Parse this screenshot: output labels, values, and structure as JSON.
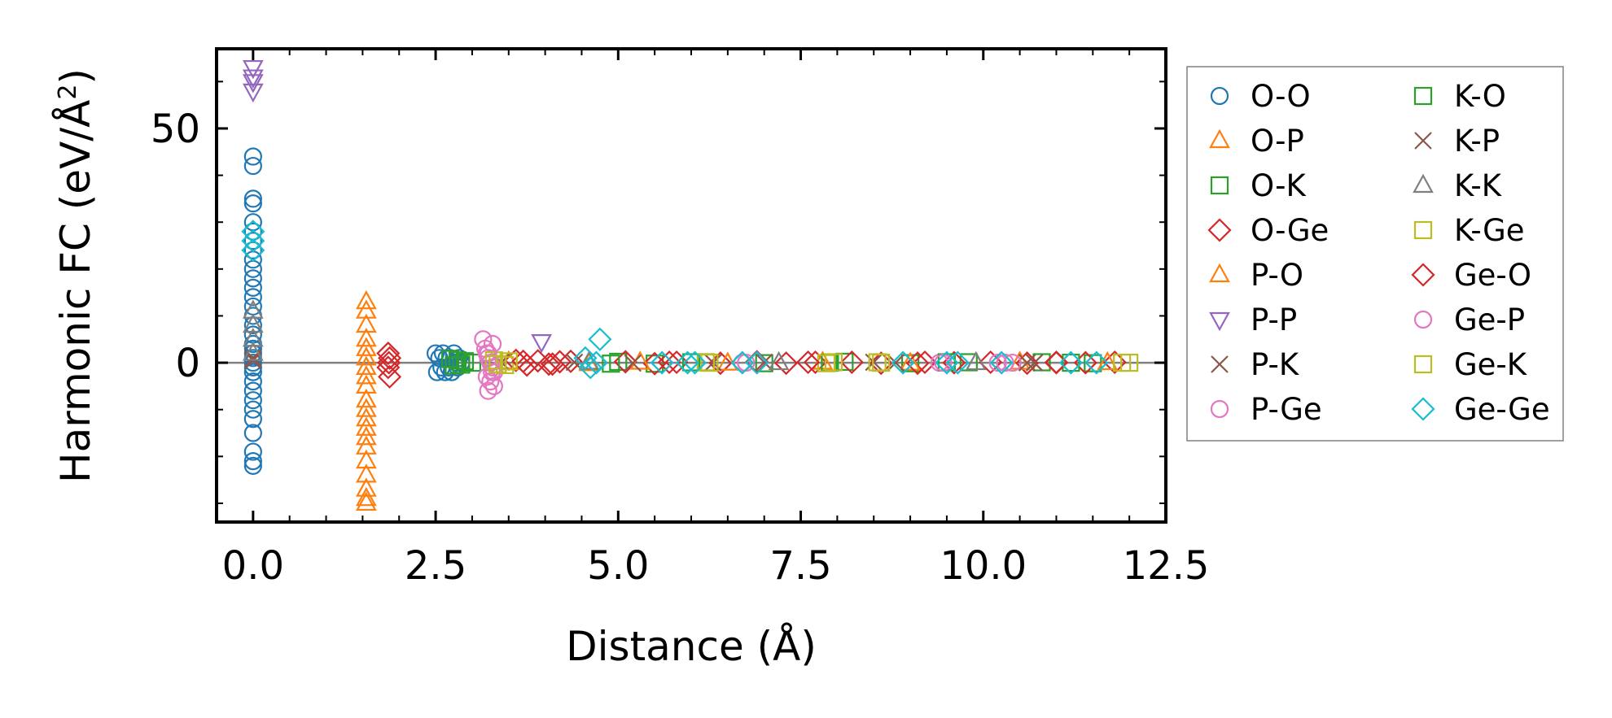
{
  "chart_data": {
    "type": "scatter",
    "title": "",
    "xlabel": "Distance (Å)",
    "ylabel_main": "Harmonic FC (eV/Å",
    "ylabel_sup": "2",
    "ylabel_end": ")",
    "xlim": [
      -0.5,
      12.5
    ],
    "ylim": [
      -34,
      67
    ],
    "xticks": [
      0.0,
      2.5,
      5.0,
      7.5,
      10.0,
      12.5
    ],
    "xtick_labels": [
      "0.0",
      "2.5",
      "5.0",
      "7.5",
      "10.0",
      "12.5"
    ],
    "yticks": [
      0,
      50
    ],
    "ytick_labels": [
      "0",
      "50"
    ],
    "reference_line_y": 0,
    "legend_position": "outside-right",
    "series": [
      {
        "name": "O-O",
        "color": "#1f77b4",
        "marker": "circle",
        "x": [
          0,
          0,
          0,
          0,
          0,
          0,
          0,
          0,
          0,
          0,
          0,
          0,
          0,
          0,
          0,
          0,
          0,
          0,
          0,
          0,
          0,
          0,
          0,
          0,
          0,
          0,
          0,
          0,
          0,
          0,
          0,
          0,
          0,
          2.5,
          2.52,
          2.55,
          2.58,
          2.6,
          2.63,
          2.65,
          2.68,
          2.7,
          2.72,
          2.75,
          2.78,
          2.8,
          2.82,
          2.85
        ],
        "y": [
          44,
          42,
          35,
          34,
          30,
          28,
          26,
          24,
          22,
          20,
          18,
          16,
          14,
          12,
          10,
          8,
          6,
          4,
          2,
          0,
          -2,
          -4,
          -6,
          -8,
          -10,
          -12,
          -15,
          -19,
          -21,
          -22,
          1,
          -1,
          3,
          2,
          -2,
          1,
          -1,
          2,
          -2,
          1,
          -1,
          1,
          -2,
          2,
          0,
          -1,
          1,
          0
        ]
      },
      {
        "name": "O-P",
        "color": "#ff7f0e",
        "marker": "triangle",
        "x": [
          1.55,
          1.55,
          1.55,
          1.55,
          1.55,
          1.55,
          1.55,
          1.55,
          1.55,
          1.55,
          1.55,
          1.55,
          1.55,
          1.55,
          1.55,
          1.55,
          1.55,
          1.55,
          1.55,
          1.55
        ],
        "y": [
          13,
          11,
          8,
          5,
          3,
          1,
          -1,
          -3,
          -5,
          -8,
          -10,
          -12,
          -14,
          -16,
          -18,
          -21,
          -24,
          -27,
          -29,
          -30
        ]
      },
      {
        "name": "O-K",
        "color": "#2ca02c",
        "marker": "square",
        "x": [
          2.7,
          2.75,
          2.8,
          2.85,
          2.9,
          3.0,
          5.0,
          5.5,
          6.2,
          7.0,
          8.1,
          9.0,
          9.8,
          10.8,
          11.5
        ],
        "y": [
          0.8,
          -0.6,
          0.5,
          -0.4,
          0.3,
          0,
          0.2,
          -0.2,
          0.1,
          -0.1,
          0.2,
          -0.1,
          0.1,
          0.1,
          -0.1
        ]
      },
      {
        "name": "O-Ge",
        "color": "#d62728",
        "marker": "diamond",
        "x": [
          1.85,
          1.85,
          1.87,
          1.87,
          1.86,
          3.6,
          3.75,
          3.9,
          4.05,
          4.2,
          4.35,
          5.1,
          5.5,
          5.8,
          6.4,
          6.9,
          7.3,
          7.7,
          8.2,
          8.6,
          9.2,
          9.6,
          10.1,
          10.6,
          11.0,
          11.4,
          11.8
        ],
        "y": [
          2,
          -1,
          1,
          -3,
          0,
          0.5,
          -0.5,
          0.4,
          -0.3,
          0.2,
          0.3,
          0.2,
          -0.2,
          0.1,
          -0.1,
          0.2,
          -0.1,
          0.1,
          0.1,
          -0.1,
          0.1,
          0,
          0.1,
          -0.1,
          0.1,
          0,
          0.1
        ]
      },
      {
        "name": "P-O",
        "color": "#ff7f0e",
        "marker": "triangle",
        "x": [
          3.5,
          4.6,
          5.3,
          6.5,
          7.8,
          9.0,
          10.5,
          11.7
        ],
        "y": [
          0.2,
          -0.2,
          0.1,
          -0.1,
          0.1,
          -0.1,
          0.1,
          0
        ]
      },
      {
        "name": "P-P",
        "color": "#9467bd",
        "marker": "triangle-down",
        "x": [
          0,
          0,
          0,
          0,
          3.95
        ],
        "y": [
          63,
          61,
          60,
          58,
          4.5
        ]
      },
      {
        "name": "P-K",
        "color": "#8c564b",
        "marker": "x",
        "x": [
          0,
          3.4,
          5.2,
          7.0,
          8.8,
          10.6
        ],
        "y": [
          1,
          0.1,
          -0.1,
          0.1,
          0,
          0
        ]
      },
      {
        "name": "P-Ge",
        "color": "#e377c2",
        "marker": "circle",
        "x": [
          3.15,
          3.18,
          3.2,
          3.22,
          3.25,
          3.28,
          3.3,
          3.2,
          3.25,
          3.3,
          3.28,
          3.22,
          6.7,
          9.4,
          10.2,
          10.4
        ],
        "y": [
          5,
          3,
          2,
          1,
          0,
          -1,
          -2,
          -3,
          -4,
          -5,
          4,
          -6,
          0,
          0,
          0,
          0
        ]
      },
      {
        "name": "K-O",
        "color": "#2ca02c",
        "marker": "square",
        "x": [
          2.9,
          4.9,
          6.0,
          7.9,
          9.5,
          11.2
        ],
        "y": [
          0.3,
          -0.2,
          0.1,
          0,
          0.1,
          0
        ]
      },
      {
        "name": "K-P",
        "color": "#8c564b",
        "marker": "x",
        "x": [
          0,
          4.4,
          6.3,
          8.5,
          10.7
        ],
        "y": [
          0.5,
          0.1,
          0,
          0.1,
          0
        ]
      },
      {
        "name": "K-K",
        "color": "#7f7f7f",
        "marker": "triangle",
        "x": [
          0,
          0,
          0,
          0,
          4.6,
          7.2,
          9.9
        ],
        "y": [
          11,
          8,
          5,
          2,
          0.1,
          0,
          0
        ]
      },
      {
        "name": "K-Ge",
        "color": "#bcbd22",
        "marker": "square",
        "x": [
          3.3,
          3.45,
          6.2,
          7.85,
          8.55,
          11.9
        ],
        "y": [
          0.5,
          -0.5,
          0.1,
          -0.1,
          0.1,
          0
        ]
      },
      {
        "name": "Ge-O",
        "color": "#d62728",
        "marker": "diamond",
        "x": [
          3.7,
          4.1,
          5.7,
          7.6,
          9.1,
          11.0
        ],
        "y": [
          0.3,
          -0.3,
          0.1,
          0.1,
          -0.1,
          0
        ]
      },
      {
        "name": "Ge-P",
        "color": "#e377c2",
        "marker": "circle",
        "x": [
          3.22,
          3.27,
          6.75,
          9.45,
          10.3
        ],
        "y": [
          2,
          -2,
          0,
          0,
          0
        ]
      },
      {
        "name": "Ge-K",
        "color": "#bcbd22",
        "marker": "square",
        "x": [
          3.35,
          3.5,
          6.25,
          7.95,
          8.6,
          12.0
        ],
        "y": [
          -0.3,
          0.3,
          0,
          0.1,
          0,
          0
        ]
      },
      {
        "name": "Ge-Ge",
        "color": "#17becf",
        "marker": "diamond",
        "x": [
          0,
          0,
          0,
          4.55,
          4.62,
          4.7,
          4.75,
          5.6,
          5.95,
          6.05,
          6.7,
          6.9,
          8.9,
          9.5,
          9.65,
          10.25,
          11.2,
          11.55
        ],
        "y": [
          28,
          24,
          26,
          1,
          -1,
          0,
          5,
          0,
          0,
          0,
          0,
          0,
          0,
          0,
          0,
          0,
          0,
          0
        ]
      }
    ]
  }
}
